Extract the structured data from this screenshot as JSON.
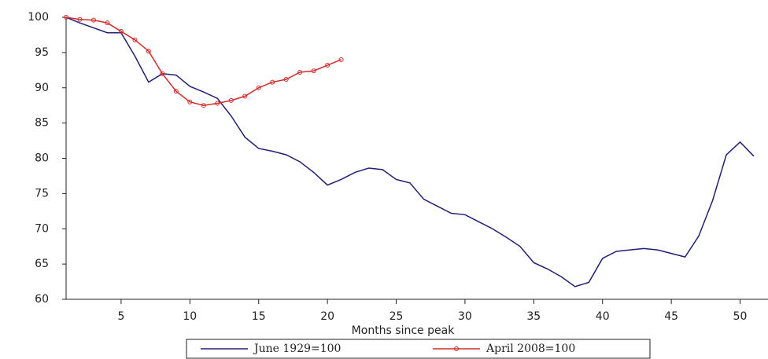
{
  "chart_data": {
    "type": "line",
    "x_label": "Months since peak",
    "x": [
      1,
      2,
      3,
      4,
      5,
      6,
      7,
      8,
      9,
      10,
      11,
      12,
      13,
      14,
      15,
      16,
      17,
      18,
      19,
      20,
      21,
      22,
      23,
      24,
      25,
      26,
      27,
      28,
      29,
      30,
      31,
      32,
      33,
      34,
      35,
      36,
      37,
      38,
      39,
      40,
      41,
      42,
      43,
      44,
      45,
      46,
      47,
      48,
      49,
      50,
      51
    ],
    "xlim": [
      1,
      51
    ],
    "xticks": [
      5,
      10,
      15,
      20,
      25,
      30,
      35,
      40,
      45,
      50
    ],
    "ylim": [
      60,
      100
    ],
    "yticks": [
      60,
      65,
      70,
      75,
      80,
      85,
      90,
      95,
      100
    ],
    "grid": false,
    "legend": "bottom",
    "series": [
      {
        "name": "June 1929=100",
        "color": "#1f1f78",
        "values": [
          100,
          99.2,
          98.5,
          97.8,
          97.8,
          94.5,
          90.8,
          92,
          91.8,
          90.2,
          89.4,
          88.5,
          86,
          83,
          81.4,
          81,
          80.5,
          79.5,
          78,
          76.2,
          77,
          78,
          78.6,
          78.4,
          77,
          76.5,
          74.2,
          73.2,
          72.2,
          72,
          71,
          70,
          68.8,
          67.5,
          65.2,
          64.3,
          63.2,
          61.8,
          62.4,
          65.8,
          66.8,
          67,
          67.2,
          67,
          66.5,
          66,
          69,
          74,
          80.5,
          82.3,
          80.3
        ]
      },
      {
        "name": "April 2008=100",
        "color": "#d42a2a",
        "marker": "circle",
        "values": [
          100,
          99.7,
          99.6,
          99.2,
          98,
          96.8,
          95.2,
          92,
          89.5,
          88,
          87.5,
          87.8,
          88.2,
          88.8,
          90,
          90.8,
          91.2,
          92.2,
          92.4,
          93.2,
          94,
          null,
          null,
          null,
          null,
          null,
          null,
          null,
          null,
          null,
          null,
          null,
          null,
          null,
          null,
          null,
          null,
          null,
          null,
          null,
          null,
          null,
          null,
          null,
          null,
          null,
          null,
          null,
          null,
          null,
          null
        ]
      }
    ]
  }
}
